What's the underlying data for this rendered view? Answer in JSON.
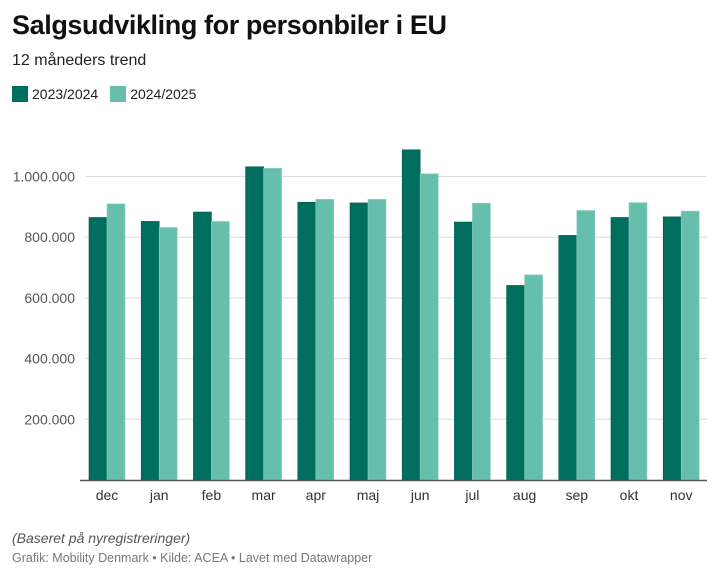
{
  "header": {
    "title": "Salgsudvikling for personbiler i EU",
    "subtitle": "12 måneders trend"
  },
  "legend": [
    {
      "label": "2023/2024",
      "color": "#006e5f"
    },
    {
      "label": "2024/2025",
      "color": "#66bfad"
    }
  ],
  "footer": {
    "note": "(Baseret på nyregistreringer)",
    "credit": "Grafik: Mobility Denmark • Kilde: ACEA • Lavet med Datawrapper"
  },
  "chart_data": {
    "type": "bar",
    "title": "Salgsudvikling for personbiler i EU",
    "subtitle": "12 måneders trend",
    "xlabel": "",
    "ylabel": "",
    "categories": [
      "dec",
      "jan",
      "feb",
      "mar",
      "apr",
      "maj",
      "jun",
      "jul",
      "aug",
      "sep",
      "okt",
      "nov"
    ],
    "series": [
      {
        "name": "2023/2024",
        "color": "#006e5f",
        "values": [
          865000,
          852000,
          883000,
          1032000,
          915000,
          913000,
          1088000,
          850000,
          641000,
          806000,
          865000,
          867000
        ]
      },
      {
        "name": "2024/2025",
        "color": "#66bfad",
        "values": [
          910000,
          832000,
          852000,
          1027000,
          925000,
          925000,
          1009000,
          912000,
          676000,
          888000,
          914000,
          886000
        ]
      }
    ],
    "ylim": [
      0,
      1100000
    ],
    "yticks": [
      200000,
      400000,
      600000,
      800000,
      1000000
    ],
    "ytick_labels": [
      "200.000",
      "400.000",
      "600.000",
      "800.000",
      "1.000.000"
    ],
    "grid": true,
    "legend_position": "top-left"
  }
}
